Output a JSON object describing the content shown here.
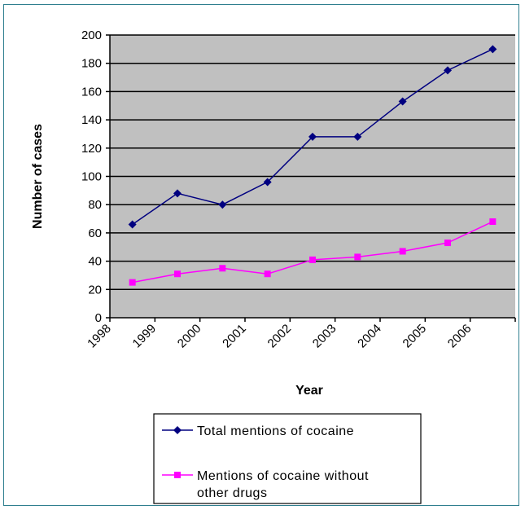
{
  "chart_data": {
    "type": "line",
    "title": "",
    "xlabel": "Year",
    "ylabel": "Number of cases",
    "categories": [
      "1998",
      "1999",
      "2000",
      "2001",
      "2002",
      "2003",
      "2004",
      "2005",
      "2006"
    ],
    "ylim": [
      0,
      200
    ],
    "yticks": [
      0,
      20,
      40,
      60,
      80,
      100,
      120,
      140,
      160,
      180,
      200
    ],
    "grid": true,
    "plot_background": "#c0c0c0",
    "legend_position": "bottom",
    "series": [
      {
        "name": "Total mentions of cocaine",
        "color": "#000080",
        "marker": "diamond",
        "values": [
          66,
          88,
          80,
          96,
          128,
          128,
          153,
          175,
          190
        ]
      },
      {
        "name": "Mentions of cocaine without other drugs",
        "color": "#ff00ff",
        "marker": "square",
        "values": [
          25,
          31,
          35,
          31,
          41,
          43,
          47,
          53,
          68
        ]
      }
    ],
    "legend": {
      "entries": [
        {
          "lines": [
            "Total mentions of cocaine"
          ]
        },
        {
          "lines": [
            "Mentions of cocaine without",
            "other drugs"
          ]
        }
      ]
    }
  }
}
